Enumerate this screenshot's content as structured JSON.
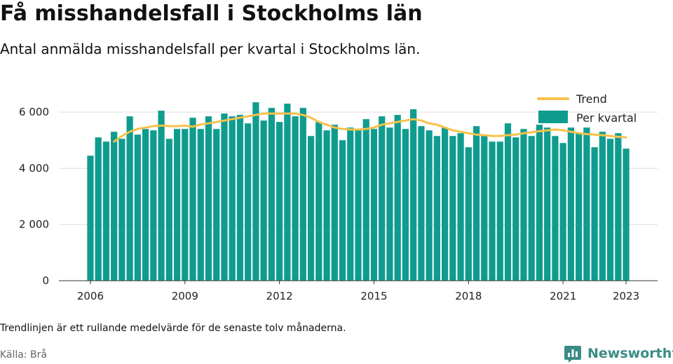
{
  "header": {
    "title": "Få misshandelsfall i Stockholms län",
    "subtitle": "Antal anmälda misshandelsfall per kvartal i Stockholms län."
  },
  "footer": {
    "note": "Trendlinjen är ett rullande medelvärde för de senaste tolv månaderna.",
    "source": "Källa: Brå",
    "brand": "Newsworthy",
    "brand_icon": "bar-chart-logo-icon"
  },
  "colors": {
    "bar": "#0f9c8f",
    "trend": "#f7c24a",
    "grid": "#dddddd",
    "axis": "#333333",
    "brand": "#3a8c86"
  },
  "chart_data": {
    "type": "bar",
    "legend": {
      "position": "top-right",
      "entries": [
        "Trend",
        "Per kvartal"
      ]
    },
    "x_range": [
      2005.0,
      2024.0
    ],
    "ylim": [
      0,
      7000
    ],
    "yticks": [
      0,
      2000,
      4000,
      6000
    ],
    "ytick_labels": [
      "0",
      "2 000",
      "4 000",
      "6 000"
    ],
    "xticks": [
      2006,
      2009,
      2012,
      2015,
      2018,
      2021,
      2023
    ],
    "xtick_labels": [
      "2006",
      "2009",
      "2012",
      "2015",
      "2018",
      "2021",
      "2023"
    ],
    "grid": true,
    "series": [
      {
        "name": "Per kvartal",
        "type": "bar",
        "x": [
          2006.0,
          2006.25,
          2006.5,
          2006.75,
          2007.0,
          2007.25,
          2007.5,
          2007.75,
          2008.0,
          2008.25,
          2008.5,
          2008.75,
          2009.0,
          2009.25,
          2009.5,
          2009.75,
          2010.0,
          2010.25,
          2010.5,
          2010.75,
          2011.0,
          2011.25,
          2011.5,
          2011.75,
          2012.0,
          2012.25,
          2012.5,
          2012.75,
          2013.0,
          2013.25,
          2013.5,
          2013.75,
          2014.0,
          2014.25,
          2014.5,
          2014.75,
          2015.0,
          2015.25,
          2015.5,
          2015.75,
          2016.0,
          2016.25,
          2016.5,
          2016.75,
          2017.0,
          2017.25,
          2017.5,
          2017.75,
          2018.0,
          2018.25,
          2018.5,
          2018.75,
          2019.0,
          2019.25,
          2019.5,
          2019.75,
          2020.0,
          2020.25,
          2020.5,
          2020.75,
          2021.0,
          2021.25,
          2021.5,
          2021.75,
          2022.0,
          2022.25,
          2022.5,
          2022.75,
          2023.0
        ],
        "values": [
          4450,
          5100,
          4950,
          5300,
          5050,
          5850,
          5200,
          5400,
          5350,
          6050,
          5050,
          5400,
          5400,
          5800,
          5400,
          5850,
          5400,
          5950,
          5850,
          5900,
          5600,
          6350,
          5700,
          6150,
          5650,
          6300,
          5850,
          6150,
          5150,
          5650,
          5350,
          5550,
          5000,
          5450,
          5350,
          5750,
          5400,
          5850,
          5450,
          5900,
          5400,
          6100,
          5500,
          5350,
          5150,
          5450,
          5150,
          5250,
          4750,
          5500,
          5200,
          4950,
          4950,
          5600,
          5100,
          5400,
          5150,
          5550,
          5450,
          5150,
          4900,
          5450,
          5250,
          5450,
          4750,
          5300,
          5050,
          5250,
          4700
        ]
      },
      {
        "name": "Trend",
        "type": "line",
        "x": [
          2006.75,
          2007.0,
          2007.25,
          2007.5,
          2007.75,
          2008.0,
          2008.25,
          2008.5,
          2008.75,
          2009.0,
          2009.25,
          2009.5,
          2009.75,
          2010.0,
          2010.25,
          2010.5,
          2010.75,
          2011.0,
          2011.25,
          2011.5,
          2011.75,
          2012.0,
          2012.25,
          2012.5,
          2012.75,
          2013.0,
          2013.25,
          2013.5,
          2013.75,
          2014.0,
          2014.25,
          2014.5,
          2014.75,
          2015.0,
          2015.25,
          2015.5,
          2015.75,
          2016.0,
          2016.25,
          2016.5,
          2016.75,
          2017.0,
          2017.25,
          2017.5,
          2017.75,
          2018.0,
          2018.25,
          2018.5,
          2018.75,
          2019.0,
          2019.25,
          2019.5,
          2019.75,
          2020.0,
          2020.25,
          2020.5,
          2020.75,
          2021.0,
          2021.25,
          2021.5,
          2021.75,
          2022.0,
          2022.25,
          2022.5,
          2022.75,
          2023.0
        ],
        "values": [
          4950,
          5150,
          5300,
          5400,
          5450,
          5500,
          5520,
          5500,
          5500,
          5520,
          5480,
          5560,
          5600,
          5650,
          5700,
          5750,
          5800,
          5850,
          5900,
          5950,
          5950,
          5950,
          5950,
          5950,
          5900,
          5800,
          5650,
          5550,
          5450,
          5400,
          5380,
          5380,
          5400,
          5450,
          5550,
          5600,
          5650,
          5700,
          5750,
          5700,
          5600,
          5550,
          5450,
          5350,
          5300,
          5250,
          5200,
          5180,
          5150,
          5150,
          5180,
          5200,
          5250,
          5280,
          5320,
          5350,
          5380,
          5350,
          5300,
          5250,
          5220,
          5200,
          5180,
          5150,
          5120,
          5100
        ]
      }
    ]
  }
}
